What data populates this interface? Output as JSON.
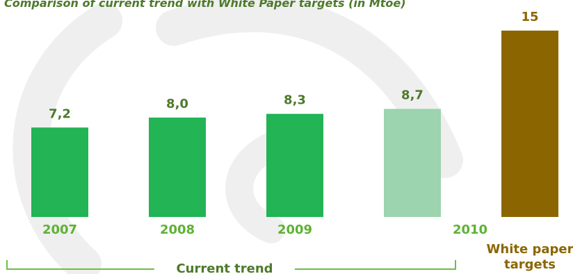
{
  "colors": {
    "current_trend": "#22b455",
    "projection": "#9bd4ae",
    "target": "#8b6600",
    "value_label": "#4e7a2c",
    "category_label": "#5db233",
    "target_label": "#8b6600",
    "group_line": "#6cbf45",
    "watermark": "#efefef"
  },
  "chart_data": {
    "type": "bar",
    "title": "Comparison of current trend with White Paper targets (in Mtoe)",
    "xlabel": "",
    "ylabel": "",
    "ylim": [
      0,
      15
    ],
    "grid": false,
    "bars": [
      {
        "category": "2007",
        "value": 7.2,
        "value_label": "7,2",
        "kind": "current_trend"
      },
      {
        "category": "2008",
        "value": 8.0,
        "value_label": "8,0",
        "kind": "current_trend"
      },
      {
        "category": "2009",
        "value": 8.3,
        "value_label": "8,3",
        "kind": "current_trend"
      },
      {
        "category": "2010",
        "value": 8.7,
        "value_label": "8,7",
        "kind": "projection"
      },
      {
        "category": "White paper targets",
        "value": 15,
        "value_label": "15",
        "kind": "target"
      }
    ],
    "groups": [
      {
        "label": "Current trend",
        "spans": [
          "2007",
          "2008",
          "2009",
          "2010"
        ]
      }
    ]
  }
}
